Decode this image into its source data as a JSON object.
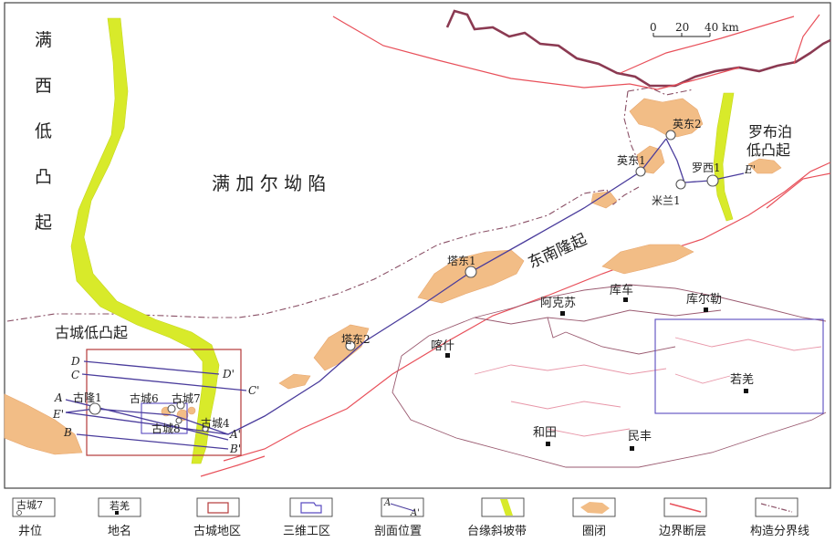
{
  "regions": {
    "manxi_chars": [
      "满",
      "西",
      "低",
      "凸",
      "起"
    ],
    "manjiaer": "满 加 尔 坳 陷",
    "dongnan": "东南隆起",
    "gucheng_low": "古城低凸起",
    "luobupo_1": "罗布泊",
    "luobupo_2": "低凸起"
  },
  "wells": {
    "yingdong2": "英东2",
    "yingdong1": "英东1",
    "luoxi1": "罗西1",
    "milan1": "米兰1",
    "tadong1": "塔东1",
    "tadong2": "塔东2",
    "gulong1": "古隆1",
    "gucheng6": "古城6",
    "gucheng7": "古城7",
    "gucheng8": "古城8",
    "gucheng4": "古城4"
  },
  "places": {
    "akesu": "阿克苏",
    "kuche": "库车",
    "kuerle": "库尔勒",
    "kashi": "喀什",
    "ruoqiang": "若羌",
    "hetian": "和田",
    "minfeng": "民丰"
  },
  "section_labels": {
    "A": "A",
    "A2": "A'",
    "B": "B",
    "B2": "B'",
    "C": "C",
    "C2": "C'",
    "D": "D",
    "D2": "D'",
    "E": "E'"
  },
  "scale": {
    "t0": "0",
    "t20": "20",
    "t40": "40 km"
  },
  "legend": {
    "well_sample": "古城7",
    "well": "井位",
    "place_sample": "若羌",
    "place": "地名",
    "gucheng_area": "古城地区",
    "area_3d": "三维工区",
    "section_sample_a": "A",
    "section_sample_b": "A'",
    "section": "剖面位置",
    "slope": "台缘斜坡带",
    "trap": "圈闭",
    "fault": "边界断层",
    "tectonic": "构造分界线"
  },
  "colors": {
    "slope": "#d8ea2a",
    "trap": "#f2bd86",
    "fault": "#e8505a",
    "section": "#4a3c9c",
    "gucheng_box": "#b53a3a",
    "box_3d": "#5a4cc0",
    "border": "#8b3a52"
  }
}
